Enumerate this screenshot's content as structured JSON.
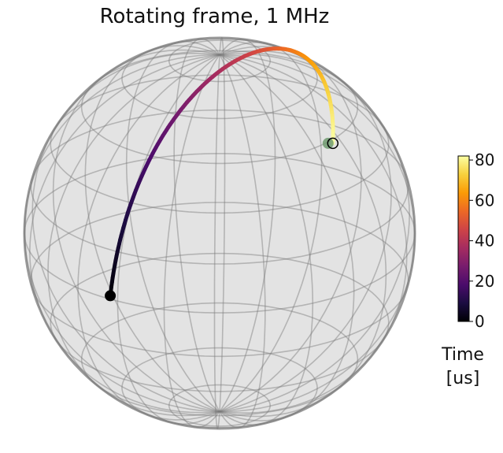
{
  "chart_data": {
    "type": "bloch-sphere",
    "title": "Rotating frame, 1 MHz",
    "trajectory": {
      "start_point": {
        "x": -0.56,
        "y": -0.32,
        "color": "#000000"
      },
      "end_point": {
        "x": 0.58,
        "y": 0.46,
        "color": "#6e9a6e"
      },
      "time_range_us": [
        0,
        82
      ],
      "colormap": "inferno"
    },
    "colorbar": {
      "label": "Time\n[us]",
      "min": 0,
      "max": 82,
      "ticks": [
        0,
        20,
        40,
        60,
        80
      ],
      "colors": [
        "#000004",
        "#1b0c41",
        "#4a0c6b",
        "#781c6d",
        "#a52c60",
        "#cf4446",
        "#ed6925",
        "#fb9b06",
        "#f7d13d",
        "#fcffa4"
      ]
    },
    "sphere": {
      "fill": "#d9d9d9",
      "grid_color": "#7a7a7a"
    }
  }
}
